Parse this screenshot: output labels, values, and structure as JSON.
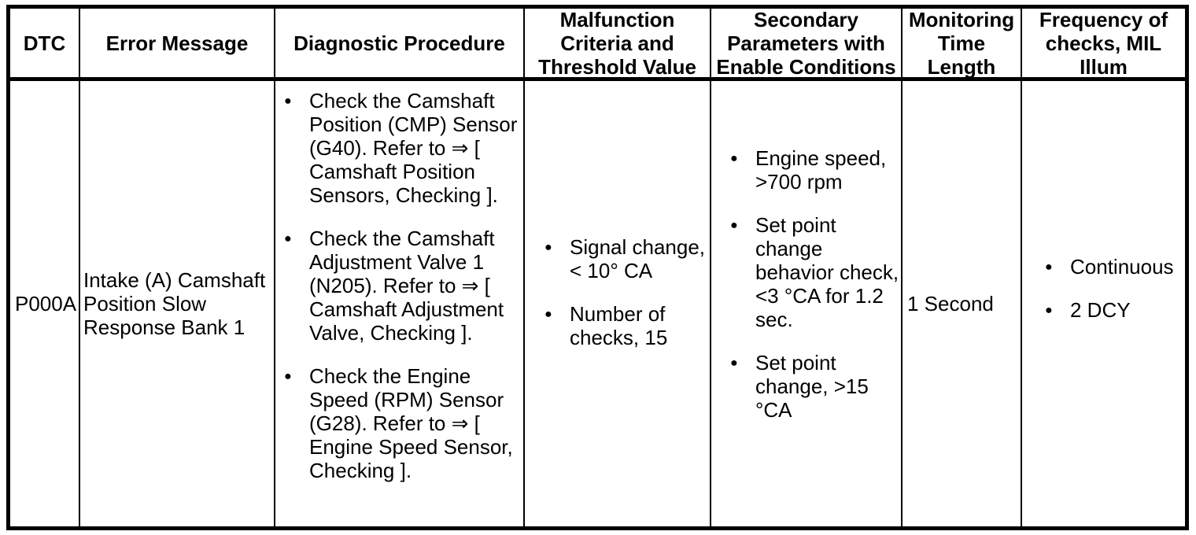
{
  "table": {
    "columns": [
      {
        "label": "DTC"
      },
      {
        "label": "Error Message"
      },
      {
        "label": "Diagnostic Procedure"
      },
      {
        "label": "Malfunction Criteria and Threshold Value"
      },
      {
        "label": "Secondary Parameters with Enable Conditions"
      },
      {
        "label": "Monitoring Time Length"
      },
      {
        "label": "Frequency of checks, MIL Illum"
      }
    ],
    "rows": [
      {
        "dtc": "P000A",
        "error_message": "Intake (A) Camshaft Position Slow Response Bank 1",
        "diagnostic_procedure": [
          "Check the Camshaft Position (CMP) Sensor (G40). Refer to ⇒ [ Camshaft Position Sensors, Checking ].",
          "Check the Camshaft Adjustment Valve 1 (N205). Refer to ⇒ [ Camshaft Adjustment Valve, Checking ].",
          "Check the Engine Speed (RPM) Sensor (G28). Refer to ⇒ [ Engine Speed Sensor, Checking ]."
        ],
        "malfunction_criteria": [
          "Signal change, < 10° CA",
          "Number of checks, 15"
        ],
        "secondary_parameters": [
          "Engine speed, >700 rpm",
          "Set point change behavior check, <3 °CA for 1.2 sec.",
          "Set point change, >15 °CA"
        ],
        "monitoring_time_length": "1 Second",
        "frequency_of_checks": [
          "Continuous",
          "2 DCY"
        ]
      }
    ]
  },
  "colors": {
    "text": "#000000",
    "border": "#000000",
    "background": "#ffffff"
  }
}
